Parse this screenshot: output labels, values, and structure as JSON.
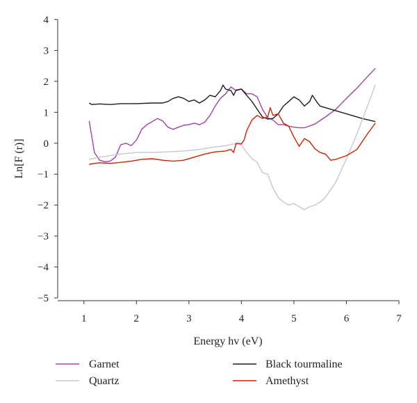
{
  "chart_data": {
    "type": "line",
    "title": "",
    "xlabel": "Energy hv (eV)",
    "ylabel": "Ln[F (r)]",
    "xlim": [
      0.5,
      7
    ],
    "ylim": [
      -5,
      4
    ],
    "xticks": [
      1,
      2,
      3,
      4,
      5,
      6,
      7
    ],
    "yticks": [
      4,
      3,
      2,
      1,
      0,
      -1,
      -2,
      -3,
      -4,
      -5
    ],
    "xtick_labels": [
      "1",
      "2",
      "3",
      "4",
      "5",
      "6",
      "7"
    ],
    "ytick_labels": [
      "4",
      "3",
      "2",
      "1",
      "0",
      "−1",
      "−2",
      "−3",
      "−4",
      "−5"
    ],
    "grid": false,
    "legend_position": "bottom",
    "series": [
      {
        "name": "Garnet",
        "color": "#a040a8",
        "points": [
          [
            1.1,
            0.72
          ],
          [
            1.2,
            -0.3
          ],
          [
            1.3,
            -0.55
          ],
          [
            1.4,
            -0.6
          ],
          [
            1.5,
            -0.58
          ],
          [
            1.6,
            -0.45
          ],
          [
            1.7,
            -0.05
          ],
          [
            1.8,
            0.0
          ],
          [
            1.9,
            -0.08
          ],
          [
            2.0,
            0.1
          ],
          [
            2.1,
            0.45
          ],
          [
            2.2,
            0.6
          ],
          [
            2.3,
            0.7
          ],
          [
            2.4,
            0.8
          ],
          [
            2.5,
            0.72
          ],
          [
            2.6,
            0.52
          ],
          [
            2.7,
            0.45
          ],
          [
            2.8,
            0.52
          ],
          [
            2.9,
            0.58
          ],
          [
            3.0,
            0.6
          ],
          [
            3.1,
            0.65
          ],
          [
            3.2,
            0.6
          ],
          [
            3.3,
            0.68
          ],
          [
            3.4,
            0.9
          ],
          [
            3.5,
            1.2
          ],
          [
            3.6,
            1.45
          ],
          [
            3.7,
            1.6
          ],
          [
            3.8,
            1.82
          ],
          [
            3.9,
            1.7
          ],
          [
            4.0,
            1.75
          ],
          [
            4.1,
            1.6
          ],
          [
            4.2,
            1.6
          ],
          [
            4.3,
            1.5
          ],
          [
            4.4,
            1.1
          ],
          [
            4.5,
            0.82
          ],
          [
            4.6,
            0.75
          ],
          [
            4.7,
            0.6
          ],
          [
            4.8,
            0.6
          ],
          [
            4.9,
            0.55
          ],
          [
            5.0,
            0.52
          ],
          [
            5.1,
            0.5
          ],
          [
            5.2,
            0.5
          ],
          [
            5.4,
            0.62
          ],
          [
            5.6,
            0.85
          ],
          [
            5.8,
            1.1
          ],
          [
            6.0,
            1.45
          ],
          [
            6.2,
            1.78
          ],
          [
            6.4,
            2.15
          ],
          [
            6.55,
            2.42
          ]
        ]
      },
      {
        "name": "Black tourmaline",
        "color": "#1a1a1a",
        "points": [
          [
            1.1,
            1.3
          ],
          [
            1.15,
            1.25
          ],
          [
            1.3,
            1.27
          ],
          [
            1.5,
            1.25
          ],
          [
            1.7,
            1.28
          ],
          [
            2.0,
            1.28
          ],
          [
            2.3,
            1.3
          ],
          [
            2.5,
            1.3
          ],
          [
            2.6,
            1.35
          ],
          [
            2.7,
            1.45
          ],
          [
            2.8,
            1.5
          ],
          [
            2.9,
            1.45
          ],
          [
            3.0,
            1.35
          ],
          [
            3.1,
            1.4
          ],
          [
            3.2,
            1.3
          ],
          [
            3.3,
            1.4
          ],
          [
            3.4,
            1.55
          ],
          [
            3.5,
            1.5
          ],
          [
            3.6,
            1.7
          ],
          [
            3.65,
            1.88
          ],
          [
            3.7,
            1.75
          ],
          [
            3.8,
            1.7
          ],
          [
            3.85,
            1.55
          ],
          [
            3.9,
            1.72
          ],
          [
            4.0,
            1.75
          ],
          [
            4.1,
            1.55
          ],
          [
            4.2,
            1.35
          ],
          [
            4.3,
            1.1
          ],
          [
            4.4,
            0.85
          ],
          [
            4.5,
            0.78
          ],
          [
            4.6,
            0.8
          ],
          [
            4.7,
            0.95
          ],
          [
            4.8,
            1.2
          ],
          [
            4.9,
            1.35
          ],
          [
            5.0,
            1.5
          ],
          [
            5.1,
            1.4
          ],
          [
            5.2,
            1.2
          ],
          [
            5.3,
            1.35
          ],
          [
            5.35,
            1.55
          ],
          [
            5.45,
            1.3
          ],
          [
            5.5,
            1.2
          ],
          [
            5.7,
            1.1
          ],
          [
            6.0,
            0.95
          ],
          [
            6.3,
            0.8
          ],
          [
            6.55,
            0.7
          ]
        ]
      },
      {
        "name": "Quartz",
        "color": "#c8c8c8",
        "points": [
          [
            1.1,
            -0.52
          ],
          [
            1.3,
            -0.45
          ],
          [
            1.5,
            -0.4
          ],
          [
            1.7,
            -0.35
          ],
          [
            2.0,
            -0.3
          ],
          [
            2.3,
            -0.3
          ],
          [
            2.6,
            -0.28
          ],
          [
            2.9,
            -0.25
          ],
          [
            3.2,
            -0.2
          ],
          [
            3.5,
            -0.12
          ],
          [
            3.7,
            -0.08
          ],
          [
            3.85,
            -0.02
          ],
          [
            4.0,
            -0.05
          ],
          [
            4.1,
            -0.3
          ],
          [
            4.2,
            -0.5
          ],
          [
            4.3,
            -0.62
          ],
          [
            4.4,
            -0.95
          ],
          [
            4.5,
            -1.0
          ],
          [
            4.6,
            -1.45
          ],
          [
            4.7,
            -1.75
          ],
          [
            4.8,
            -1.9
          ],
          [
            4.9,
            -2.0
          ],
          [
            5.0,
            -1.95
          ],
          [
            5.1,
            -2.05
          ],
          [
            5.2,
            -2.15
          ],
          [
            5.3,
            -2.05
          ],
          [
            5.4,
            -2.0
          ],
          [
            5.5,
            -1.9
          ],
          [
            5.6,
            -1.75
          ],
          [
            5.8,
            -1.25
          ],
          [
            6.0,
            -0.5
          ],
          [
            6.2,
            0.3
          ],
          [
            6.4,
            1.2
          ],
          [
            6.55,
            1.88
          ]
        ]
      },
      {
        "name": "Amethyst",
        "color": "#cc2200",
        "points": [
          [
            1.1,
            -0.68
          ],
          [
            1.3,
            -0.63
          ],
          [
            1.5,
            -0.65
          ],
          [
            1.7,
            -0.62
          ],
          [
            1.9,
            -0.58
          ],
          [
            2.1,
            -0.52
          ],
          [
            2.3,
            -0.5
          ],
          [
            2.5,
            -0.55
          ],
          [
            2.7,
            -0.58
          ],
          [
            2.9,
            -0.55
          ],
          [
            3.1,
            -0.45
          ],
          [
            3.3,
            -0.35
          ],
          [
            3.5,
            -0.28
          ],
          [
            3.7,
            -0.25
          ],
          [
            3.8,
            -0.2
          ],
          [
            3.85,
            -0.3
          ],
          [
            3.9,
            0.0
          ],
          [
            4.0,
            -0.02
          ],
          [
            4.05,
            0.1
          ],
          [
            4.1,
            0.4
          ],
          [
            4.2,
            0.75
          ],
          [
            4.3,
            0.9
          ],
          [
            4.4,
            0.8
          ],
          [
            4.5,
            0.85
          ],
          [
            4.55,
            1.15
          ],
          [
            4.6,
            0.9
          ],
          [
            4.7,
            0.95
          ],
          [
            4.8,
            0.65
          ],
          [
            4.9,
            0.55
          ],
          [
            5.0,
            0.2
          ],
          [
            5.1,
            -0.1
          ],
          [
            5.2,
            0.15
          ],
          [
            5.3,
            0.05
          ],
          [
            5.4,
            -0.18
          ],
          [
            5.5,
            -0.3
          ],
          [
            5.6,
            -0.35
          ],
          [
            5.7,
            -0.55
          ],
          [
            5.8,
            -0.52
          ],
          [
            6.0,
            -0.4
          ],
          [
            6.2,
            -0.2
          ],
          [
            6.4,
            0.3
          ],
          [
            6.55,
            0.65
          ]
        ]
      }
    ]
  }
}
